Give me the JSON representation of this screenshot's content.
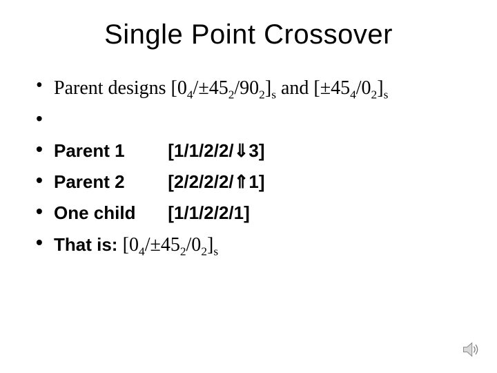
{
  "title": "Single Point Crossover",
  "line1": {
    "prefix": "Parent designs [0",
    "s1": "4",
    "mid1": "/±45",
    "s2": "2",
    "mid2": "/90",
    "s3": "2",
    "mid3": "]",
    "s4": "s",
    "mid4": " and [±45",
    "s5": "4",
    "mid5": "/0",
    "s6": "2",
    "mid6": "]",
    "s7": "s"
  },
  "p1_label": "Parent 1",
  "p1_val": "[1/1/2/2/⇓3]",
  "p2_label": "Parent 2",
  "p2_val": "[2/2/2/2/⇑1]",
  "c_label": "One child",
  "c_val": "[1/1/2/2/1]",
  "that": {
    "prefix": "That is: ",
    "a": "[0",
    "s1": "4",
    "b": "/±45",
    "s2": "2",
    "c": "/0",
    "s3": "2",
    "d": "]",
    "s4": "s"
  },
  "colors": {
    "background": "#ffffff",
    "text": "#000000",
    "icon_fill": "#d9d9d9",
    "icon_stroke": "#7f7f7f"
  }
}
